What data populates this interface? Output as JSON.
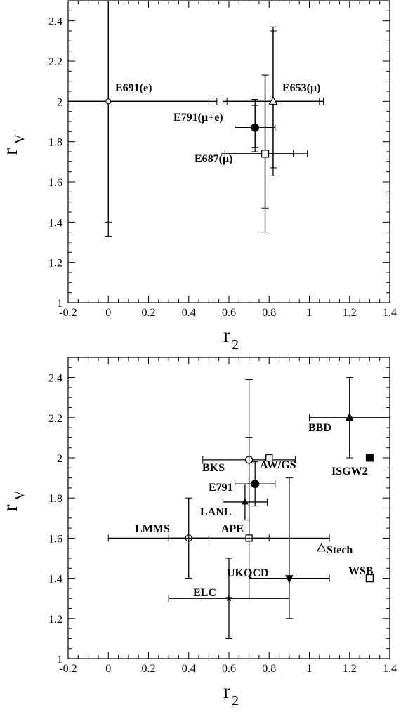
{
  "chart_data": [
    {
      "type": "scatter",
      "xlabel": "r",
      "xlabel_sub": "2",
      "ylabel": "r",
      "ylabel_sub": "V",
      "xlim": [
        -0.2,
        1.4
      ],
      "ylim": [
        1.0,
        2.5
      ],
      "x_ticks": [
        "-0.2",
        "0",
        "0.2",
        "0.4",
        "0.6",
        "0.8",
        "1",
        "1.2",
        "1.4"
      ],
      "y_ticks": [
        "1",
        "1.2",
        "1.4",
        "1.6",
        "1.8",
        "2",
        "2.2",
        "2.4"
      ],
      "grid": false,
      "points": [
        {
          "label": "E691(e)",
          "x": 0.0,
          "y": 2.0,
          "marker": "open-circle-small",
          "xerr": [
            [
              -0.2,
              0.5
            ],
            [
              -0.2,
              0.54
            ]
          ],
          "yerr": [
            [
              1.4,
              2.5
            ],
            [
              1.33,
              2.5
            ]
          ]
        },
        {
          "label": "E653(μ)",
          "x": 0.82,
          "y": 2.0,
          "marker": "open-triangle",
          "xerr": [
            [
              0.59,
              1.05
            ],
            [
              0.57,
              1.07
            ]
          ],
          "yerr": [
            [
              1.67,
              2.35
            ],
            [
              1.63,
              2.37
            ]
          ]
        },
        {
          "label": "E791(μ+e)",
          "x": 0.73,
          "y": 1.87,
          "marker": "filled-circle",
          "xerr": [
            [
              0.63,
              0.83
            ]
          ],
          "yerr": [
            [
              1.77,
              1.98
            ],
            [
              1.75,
              2.01
            ]
          ]
        },
        {
          "label": "E687(μ)",
          "x": 0.78,
          "y": 1.74,
          "marker": "open-square",
          "xerr": [
            [
              0.56,
              0.92
            ],
            [
              0.58,
              0.99
            ]
          ],
          "yerr": [
            [
              1.47,
              2.13
            ],
            [
              1.35,
              2.13
            ]
          ]
        }
      ]
    },
    {
      "type": "scatter",
      "xlabel": "r",
      "xlabel_sub": "2",
      "ylabel": "r",
      "ylabel_sub": "V",
      "xlim": [
        -0.2,
        1.4
      ],
      "ylim": [
        1.0,
        2.5
      ],
      "x_ticks": [
        "-0.2",
        "0",
        "0.2",
        "0.4",
        "0.6",
        "0.8",
        "1",
        "1.2",
        "1.4"
      ],
      "y_ticks": [
        "1",
        "1.2",
        "1.4",
        "1.6",
        "1.8",
        "2",
        "2.2",
        "2.4"
      ],
      "grid": false,
      "points": [
        {
          "label": "BBD",
          "x": 1.2,
          "y": 2.2,
          "marker": "filled-triangle",
          "xerr": [
            [
              1.0,
              1.4
            ]
          ],
          "yerr": [
            [
              2.0,
              2.4
            ]
          ]
        },
        {
          "label": "BKS",
          "x": 0.7,
          "y": 1.99,
          "marker": "open-circle",
          "xerr": [
            [
              0.47,
              0.93
            ]
          ],
          "yerr": [
            [
              1.59,
              2.39
            ]
          ]
        },
        {
          "label": "AW/GS",
          "x": 0.8,
          "y": 2.0,
          "marker": "open-square-small",
          "xerr": [],
          "yerr": []
        },
        {
          "label": "ISGW2",
          "x": 1.3,
          "y": 2.0,
          "marker": "filled-square",
          "xerr": [],
          "yerr": []
        },
        {
          "label": "E791",
          "x": 0.73,
          "y": 1.87,
          "marker": "filled-circle",
          "xerr": [
            [
              0.63,
              0.83
            ]
          ],
          "yerr": [
            [
              1.76,
              1.98
            ]
          ]
        },
        {
          "label": "LANL",
          "x": 0.68,
          "y": 1.78,
          "marker": "filled-triangle-small",
          "xerr": [
            [
              0.57,
              0.79
            ]
          ],
          "yerr": [
            [
              1.69,
              1.87
            ]
          ]
        },
        {
          "label": "LMMS",
          "x": 0.4,
          "y": 1.6,
          "marker": "open-circle-cross",
          "xerr": [
            [
              0.0,
              0.8
            ],
            [
              0.3,
              0.5
            ]
          ],
          "yerr": [
            [
              1.4,
              1.8
            ]
          ]
        },
        {
          "label": "APE",
          "x": 0.7,
          "y": 1.6,
          "marker": "open-square-cross",
          "xerr": [
            [
              0.4,
              1.1
            ]
          ],
          "yerr": [
            [
              1.3,
              2.1
            ]
          ]
        },
        {
          "label": "Stech",
          "x": 1.06,
          "y": 1.55,
          "marker": "open-triangle",
          "xerr": [],
          "yerr": []
        },
        {
          "label": "UKQCD",
          "x": 0.9,
          "y": 1.4,
          "marker": "filled-triangle-down",
          "xerr": [
            [
              0.7,
              1.1
            ]
          ],
          "yerr": [
            [
              1.2,
              1.9
            ]
          ]
        },
        {
          "label": "WSB",
          "x": 1.3,
          "y": 1.4,
          "marker": "open-square",
          "xerr": [],
          "yerr": []
        },
        {
          "label": "ELC",
          "x": 0.6,
          "y": 1.3,
          "marker": "star",
          "xerr": [
            [
              0.3,
              0.9
            ]
          ],
          "yerr": [
            [
              1.1,
              1.5
            ]
          ]
        }
      ]
    }
  ]
}
